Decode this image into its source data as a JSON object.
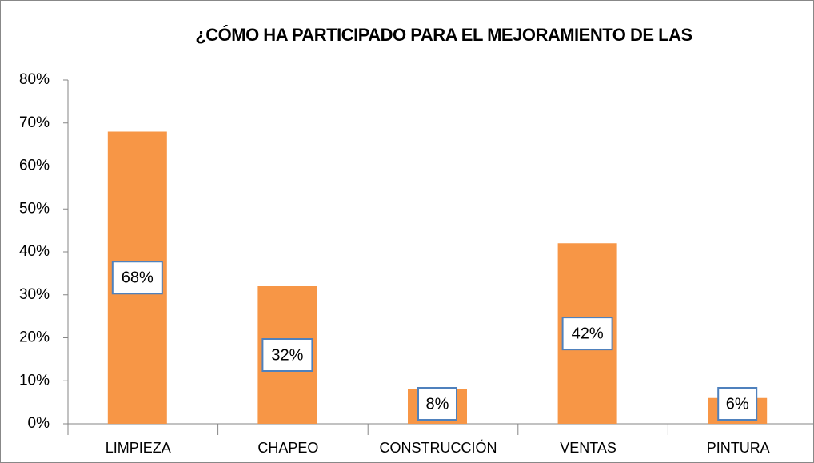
{
  "chart_data": {
    "type": "bar",
    "title": "¿CÓMO HA PARTICIPADO PARA EL MEJORAMIENTO DE LAS",
    "categories": [
      "LIMPIEZA",
      "CHAPEO",
      "CONSTRUCCIÓN",
      "VENTAS",
      "PINTURA"
    ],
    "values": [
      68,
      32,
      8,
      42,
      6
    ],
    "value_labels": [
      "68%",
      "32%",
      "8%",
      "42%",
      "6%"
    ],
    "color": "#f79646",
    "ylim": [
      0,
      80
    ],
    "yticks": [
      {
        "value": 0,
        "label": "0%"
      },
      {
        "value": 10,
        "label": "10%"
      },
      {
        "value": 20,
        "label": "20%"
      },
      {
        "value": 30,
        "label": "30%"
      },
      {
        "value": 40,
        "label": "40%"
      },
      {
        "value": 50,
        "label": "50%"
      },
      {
        "value": 60,
        "label": "60%"
      },
      {
        "value": 70,
        "label": "70%"
      },
      {
        "value": 80,
        "label": "80%"
      }
    ],
    "grid": false
  }
}
